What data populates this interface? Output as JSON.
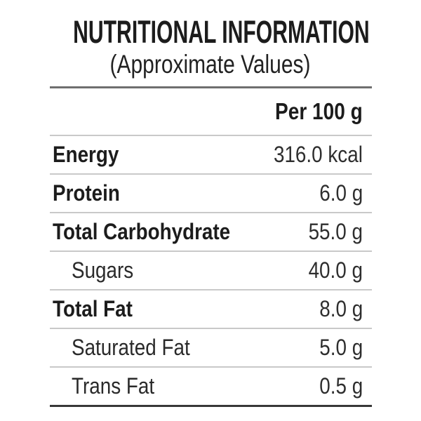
{
  "header": {
    "title": "NUTRITIONAL INFORMATION",
    "subtitle": "(Approximate Values)"
  },
  "table": {
    "column_header": "Per 100 g",
    "rows": [
      {
        "label": "Energy",
        "value": "316.0 kcal",
        "emphasis": "bold",
        "indent": false
      },
      {
        "label": "Protein",
        "value": "6.0 g",
        "emphasis": "bold",
        "indent": false
      },
      {
        "label": "Total Carbohydrate",
        "value": "55.0 g",
        "emphasis": "bold",
        "indent": false
      },
      {
        "label": "Sugars",
        "value": "40.0 g",
        "emphasis": "regular",
        "indent": true
      },
      {
        "label": "Total Fat",
        "value": "8.0 g",
        "emphasis": "bold",
        "indent": false
      },
      {
        "label": "Saturated Fat",
        "value": "5.0 g",
        "emphasis": "regular",
        "indent": true
      },
      {
        "label": "Trans Fat",
        "value": "0.5 g",
        "emphasis": "regular",
        "indent": true
      }
    ]
  },
  "colors": {
    "background": "#ffffff",
    "heading_text": "#1c1c1c",
    "value_text": "#2e2e2e",
    "thin_rule": "#c9c9c9",
    "top_rule": "#6f6f6f",
    "bottom_rule": "#383838"
  }
}
